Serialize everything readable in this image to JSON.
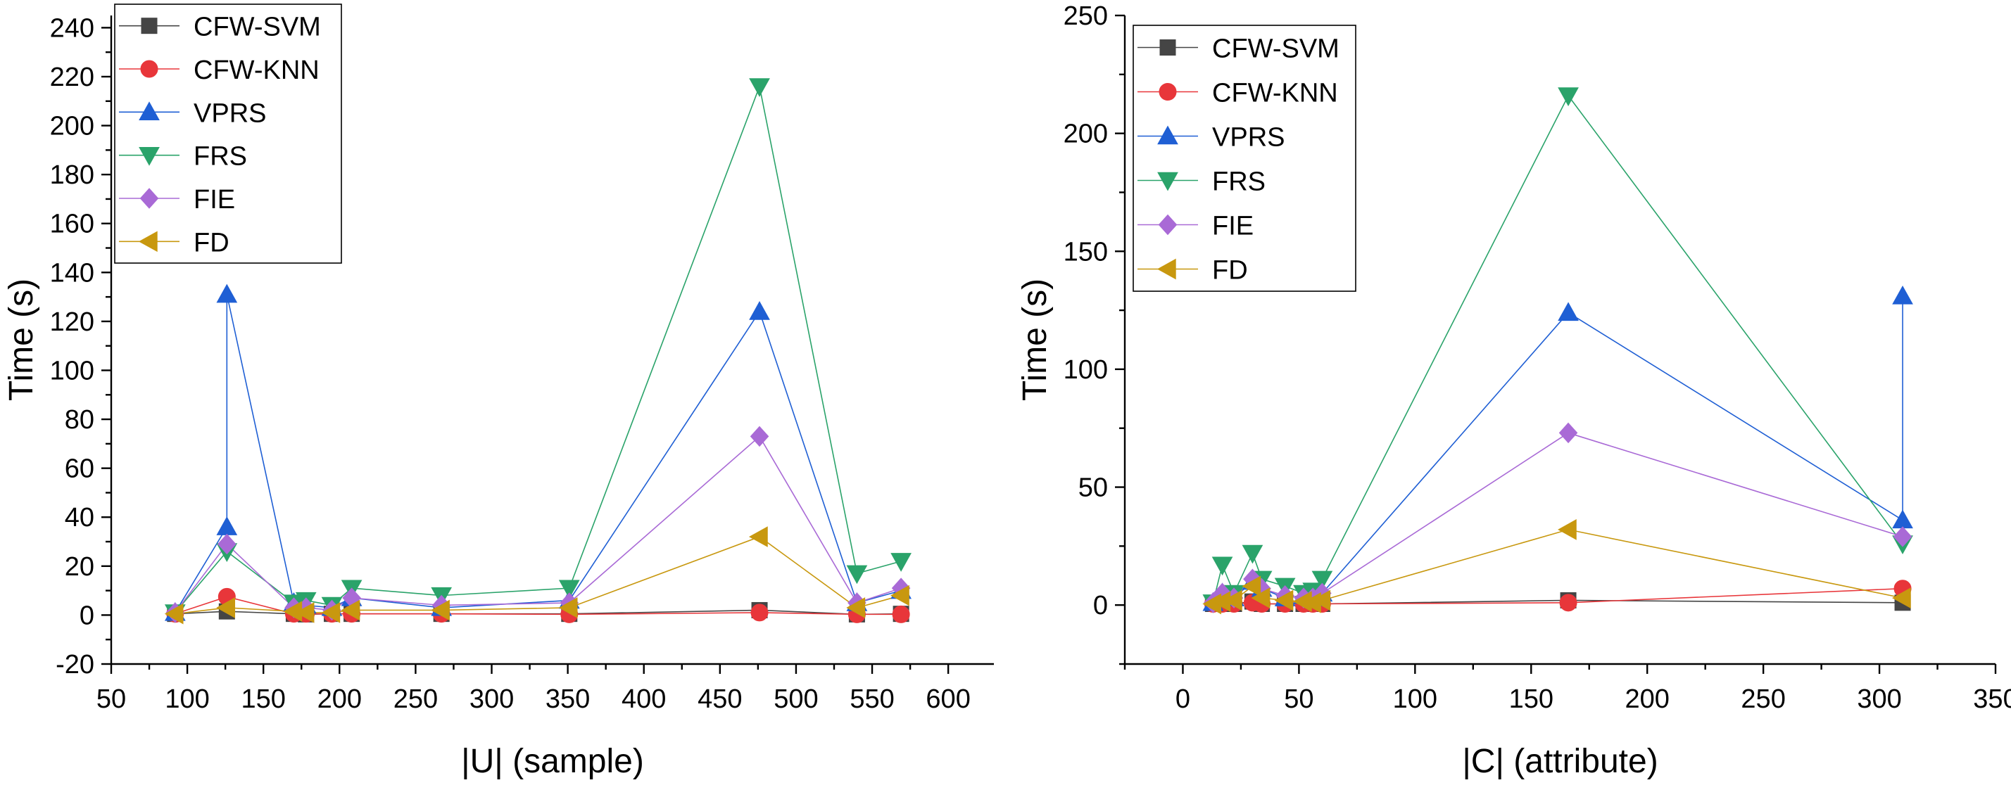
{
  "chart_data": [
    {
      "type": "line",
      "xlabel": "|U| (sample)",
      "ylabel": "Time (s)",
      "xlim": [
        50,
        630
      ],
      "ylim": [
        -20,
        245
      ],
      "xticks": [
        50,
        100,
        150,
        200,
        250,
        300,
        350,
        400,
        450,
        500,
        550,
        600
      ],
      "yticks": [
        -20,
        0,
        20,
        40,
        60,
        80,
        100,
        120,
        140,
        160,
        180,
        200,
        220,
        240
      ],
      "legend_position": "top-left",
      "series": [
        {
          "name": "CFW-SVM",
          "color": "#454545",
          "marker": "square",
          "x": [
            92,
            126,
            170,
            178,
            195,
            208,
            267,
            351,
            476,
            540,
            569
          ],
          "y": [
            0.5,
            1.5,
            0.5,
            0.3,
            0.5,
            0.5,
            0.5,
            0.5,
            2,
            0.3,
            0.5
          ]
        },
        {
          "name": "CFW-KNN",
          "color": "#e8363a",
          "marker": "circle",
          "x": [
            92,
            126,
            170,
            178,
            195,
            208,
            267,
            351,
            476,
            540,
            569
          ],
          "y": [
            0.5,
            7.5,
            0.5,
            0.5,
            0.5,
            0.5,
            0.5,
            0.3,
            1,
            0.3,
            0.3
          ]
        },
        {
          "name": "VPRS",
          "color": "#1f5fd4",
          "marker": "triangle-up",
          "x": [
            92,
            126,
            126,
            170,
            178,
            195,
            208,
            267,
            351,
            476,
            540,
            569
          ],
          "y": [
            1,
            36,
            131,
            5,
            4,
            3,
            7,
            3,
            6,
            124,
            5,
            10
          ]
        },
        {
          "name": "FRS",
          "color": "#2aa36a",
          "marker": "triangle-down",
          "x": [
            92,
            126,
            170,
            178,
            195,
            208,
            267,
            351,
            476,
            540,
            569
          ],
          "y": [
            1,
            26,
            5,
            6,
            4,
            11,
            8,
            11,
            216,
            17,
            22
          ]
        },
        {
          "name": "FIE",
          "color": "#a96ad6",
          "marker": "diamond",
          "x": [
            92,
            126,
            170,
            178,
            195,
            208,
            267,
            351,
            476,
            540,
            569
          ],
          "y": [
            1,
            29,
            3,
            3,
            2,
            7,
            4,
            5,
            73,
            5,
            11
          ]
        },
        {
          "name": "FD",
          "color": "#c8980f",
          "marker": "triangle-left",
          "x": [
            92,
            126,
            170,
            178,
            195,
            208,
            267,
            351,
            476,
            540,
            569
          ],
          "y": [
            0.5,
            3,
            1.5,
            1,
            1,
            2,
            2,
            3,
            32,
            3,
            8
          ]
        }
      ]
    },
    {
      "type": "line",
      "xlabel": "|C| (attribute)",
      "ylabel": "Time (s)",
      "xlim": [
        -25,
        350
      ],
      "ylim": [
        -25,
        250
      ],
      "xticks": [
        0,
        50,
        100,
        150,
        200,
        250,
        300,
        350
      ],
      "yticks": [
        0,
        50,
        100,
        150,
        200,
        250
      ],
      "legend_position": "top-left",
      "series": [
        {
          "name": "CFW-SVM",
          "color": "#454545",
          "marker": "square",
          "x": [
            13,
            17,
            22,
            30,
            34,
            44,
            52,
            56,
            60,
            166,
            310
          ],
          "y": [
            0.5,
            0.5,
            0.5,
            1.5,
            0.5,
            0.5,
            0.5,
            0.5,
            0.5,
            2,
            1
          ]
        },
        {
          "name": "CFW-KNN",
          "color": "#e8363a",
          "marker": "circle",
          "x": [
            13,
            17,
            22,
            30,
            34,
            44,
            52,
            56,
            60,
            166,
            310
          ],
          "y": [
            0.5,
            0.5,
            0.5,
            1,
            0.5,
            0.5,
            0.5,
            0.5,
            0.5,
            1,
            7
          ]
        },
        {
          "name": "VPRS",
          "color": "#1f5fd4",
          "marker": "triangle-up",
          "x": [
            13,
            17,
            22,
            30,
            34,
            44,
            52,
            56,
            60,
            166,
            310,
            310
          ],
          "y": [
            1,
            5,
            3,
            10,
            7,
            3,
            4,
            3,
            5,
            124,
            36,
            131
          ]
        },
        {
          "name": "FRS",
          "color": "#2aa36a",
          "marker": "triangle-down",
          "x": [
            13,
            17,
            22,
            30,
            34,
            44,
            52,
            56,
            60,
            166,
            310
          ],
          "y": [
            1,
            17,
            5,
            22,
            11,
            8,
            5,
            6,
            11,
            216,
            26
          ]
        },
        {
          "name": "FIE",
          "color": "#a96ad6",
          "marker": "diamond",
          "x": [
            13,
            17,
            22,
            30,
            34,
            44,
            52,
            56,
            60,
            166,
            310
          ],
          "y": [
            1,
            5,
            3,
            11,
            7,
            4,
            3,
            3,
            5,
            73,
            29
          ]
        },
        {
          "name": "FD",
          "color": "#c8980f",
          "marker": "triangle-left",
          "x": [
            13,
            17,
            22,
            30,
            34,
            44,
            52,
            56,
            60,
            166,
            310
          ],
          "y": [
            0.5,
            1.5,
            2,
            8,
            3,
            2,
            1.5,
            1,
            2,
            32,
            3
          ]
        }
      ]
    }
  ]
}
